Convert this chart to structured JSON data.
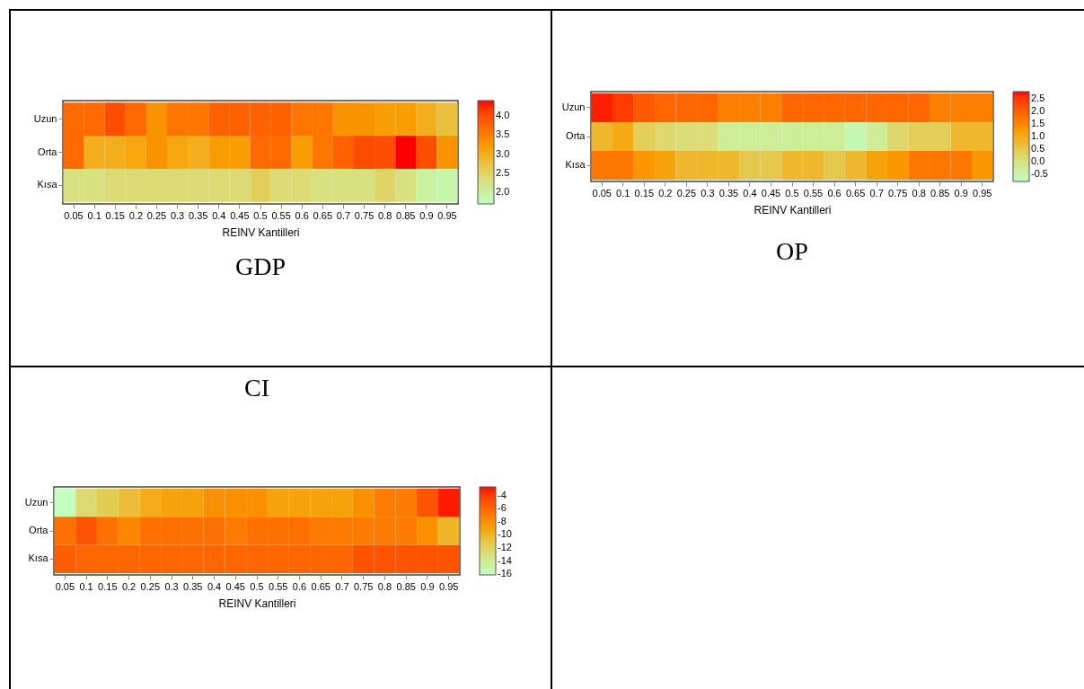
{
  "chart_data": [
    {
      "type": "heatmap",
      "title": "GDP",
      "xlabel": "REINV Kantilleri",
      "categories": [
        "0.05",
        "0.1",
        "0.15",
        "0.2",
        "0.25",
        "0.3",
        "0.35",
        "0.4",
        "0.45",
        "0.5",
        "0.55",
        "0.6",
        "0.65",
        "0.7",
        "0.75",
        "0.8",
        "0.85",
        "0.9",
        "0.95"
      ],
      "y_categories": [
        "Uzun",
        "Orta",
        "Kısa"
      ],
      "cells": [
        [
          3.7,
          3.7,
          4.0,
          3.7,
          3.3,
          3.6,
          3.6,
          3.8,
          3.8,
          3.8,
          3.8,
          3.6,
          3.6,
          3.3,
          3.3,
          3.2,
          3.2,
          3.0,
          2.8
        ],
        [
          3.7,
          3.0,
          3.0,
          3.1,
          3.3,
          3.1,
          3.0,
          3.2,
          3.2,
          3.7,
          3.7,
          3.2,
          3.6,
          3.8,
          4.0,
          4.0,
          4.4,
          4.0,
          3.3
        ],
        [
          2.3,
          2.3,
          2.4,
          2.4,
          2.4,
          2.4,
          2.4,
          2.4,
          2.4,
          2.6,
          2.4,
          2.4,
          2.3,
          2.3,
          2.3,
          2.5,
          2.3,
          2.0,
          1.9
        ]
      ],
      "clim": [
        1.7,
        4.4
      ],
      "cticks": [
        {
          "value": 2,
          "label": "2.0"
        },
        2.5,
        {
          "value": 3,
          "label": "3.0"
        },
        3.5,
        {
          "value": 4,
          "label": "4.0"
        }
      ]
    },
    {
      "type": "heatmap",
      "title": "OP",
      "xlabel": "REINV Kantilleri",
      "categories": [
        "0.05",
        "0.1",
        "0.15",
        "0.2",
        "0.25",
        "0.3",
        "0.35",
        "0.4",
        "0.45",
        "0.5",
        "0.55",
        "0.6",
        "0.65",
        "0.7",
        "0.75",
        "0.8",
        "0.85",
        "0.9",
        "0.95"
      ],
      "y_categories": [
        "Uzun",
        "Orta",
        "Kısa"
      ],
      "cells": [
        [
          2.7,
          2.5,
          2.1,
          1.9,
          1.9,
          1.9,
          1.6,
          1.6,
          1.6,
          1.9,
          1.9,
          1.9,
          1.9,
          1.9,
          1.9,
          1.9,
          1.6,
          1.6,
          1.6
        ],
        [
          0.8,
          1.0,
          0.4,
          0.2,
          0.1,
          0.1,
          -0.3,
          -0.3,
          -0.3,
          -0.3,
          -0.3,
          -0.3,
          -0.6,
          -0.3,
          0.2,
          0.4,
          0.4,
          0.8,
          0.8
        ],
        [
          1.7,
          1.7,
          1.3,
          1.1,
          0.8,
          0.8,
          0.8,
          0.5,
          0.5,
          0.8,
          0.8,
          0.5,
          0.8,
          1.1,
          1.3,
          1.7,
          1.7,
          1.7,
          1.3
        ]
      ],
      "clim": [
        -0.8,
        2.8
      ],
      "cticks": [
        -0.5,
        {
          "value": 0,
          "label": "0.0"
        },
        0.5,
        {
          "value": 1,
          "label": "1.0"
        },
        1.5,
        {
          "value": 2,
          "label": "2.0"
        },
        2.5
      ]
    },
    {
      "type": "heatmap",
      "title": "CI",
      "xlabel": "REINV Kantilleri",
      "categories": [
        "0.05",
        "0.1",
        "0.15",
        "0.2",
        "0.25",
        "0.3",
        "0.35",
        "0.4",
        "0.45",
        "0.5",
        "0.55",
        "0.6",
        "0.65",
        "0.7",
        "0.75",
        "0.8",
        "0.85",
        "0.9",
        "0.95"
      ],
      "y_categories": [
        "Uzun",
        "Orta",
        "Kısa"
      ],
      "cells": [
        [
          -16,
          -12.5,
          -11.5,
          -10.5,
          -9.5,
          -9,
          -9,
          -8,
          -8,
          -8,
          -9,
          -9,
          -9,
          -9,
          -8,
          -7,
          -7,
          -5,
          -3
        ],
        [
          -6.5,
          -5,
          -6.5,
          -7.5,
          -6.5,
          -6.5,
          -6.5,
          -6.5,
          -7,
          -6.5,
          -6.5,
          -6.5,
          -7,
          -7,
          -7,
          -7,
          -7,
          -8,
          -10
        ],
        [
          -5.5,
          -6,
          -6,
          -6,
          -6,
          -6,
          -6,
          -6,
          -6,
          -6,
          -6,
          -6,
          -6,
          -6,
          -5,
          -5,
          -5,
          -5,
          -5
        ]
      ],
      "clim": [
        -16.1,
        -2.7
      ],
      "cticks": [
        -4,
        -6,
        -8,
        -10,
        -12,
        -14,
        -16
      ]
    }
  ]
}
